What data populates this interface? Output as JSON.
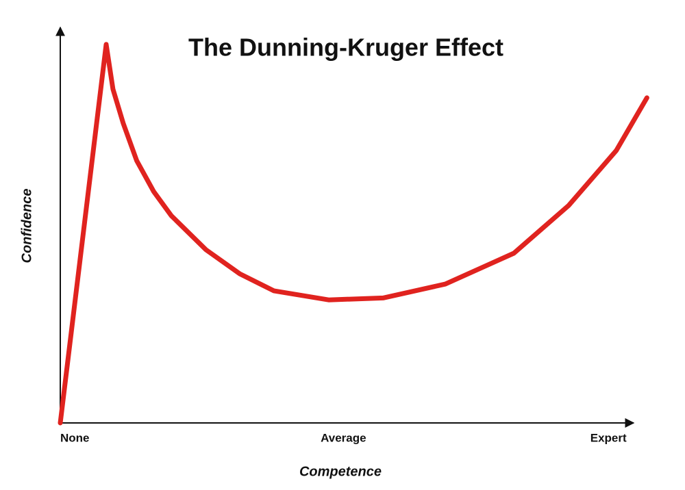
{
  "chart_data": {
    "type": "line",
    "title": "The Dunning-Kruger Effect",
    "x_label": "Competence",
    "y_label": "Confidence",
    "x": [
      0,
      8.1,
      9.3,
      11.1,
      13.5,
      16.5,
      19.6,
      25.7,
      31.7,
      37.7,
      47.4,
      57.0,
      68.0,
      80.1,
      89.8,
      98.2,
      103.6
    ],
    "series": [
      {
        "color": "#e0231f",
        "values": [
          0,
          95.7,
          84.4,
          75.8,
          66.3,
          58.5,
          52.4,
          43.8,
          37.7,
          33.4,
          31.1,
          31.6,
          35.1,
          42.9,
          55.0,
          68.9,
          82.2
        ]
      }
    ],
    "xlim": [
      0,
      105
    ],
    "ylim": [
      0,
      100
    ],
    "xticks": [
      {
        "value": 0,
        "label": "None"
      },
      {
        "value": 50,
        "label": "Average"
      },
      {
        "value": 100,
        "label": "Expert"
      }
    ]
  }
}
